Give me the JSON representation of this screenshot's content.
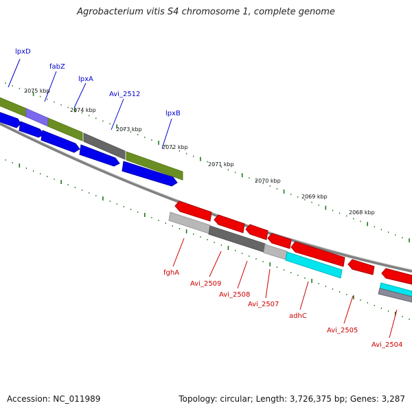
{
  "title": "Agrobacterium vitis S4 chromosome 1, complete genome",
  "accession": "Accession: NC_011989",
  "summary": "Topology: circular; Length: 3,726,375 bp; Genes: 3,287",
  "ruler_labels": [
    "2075 kbp",
    "2074 kbp",
    "2073 kbp",
    "2072 kbp",
    "2071 kbp",
    "2070 kbp",
    "2069 kbp",
    "2068 kbp"
  ],
  "upper_gene_labels": [
    "lpxD",
    "fabZ",
    "lpxA",
    "Avi_2512",
    "lpxB"
  ],
  "lower_gene_labels": [
    "fghA",
    "Avi_2509",
    "Avi_2508",
    "Avi_2507",
    "adhC",
    "Avi_2505",
    "Avi_2504"
  ],
  "colors": {
    "upper_label": "#0000cc",
    "lower_label": "#cc0000",
    "forward_gene": "#0000ee",
    "reverse_gene": "#ee0000",
    "cog_olive": "#6b8e23",
    "cog_purple": "#7b68ee",
    "cog_gray": "#666666",
    "cog_light_gray": "#b8b8b8",
    "cog_cyan": "#00e5ee",
    "backbone": "#808080",
    "tick": "#1a7a1a"
  }
}
